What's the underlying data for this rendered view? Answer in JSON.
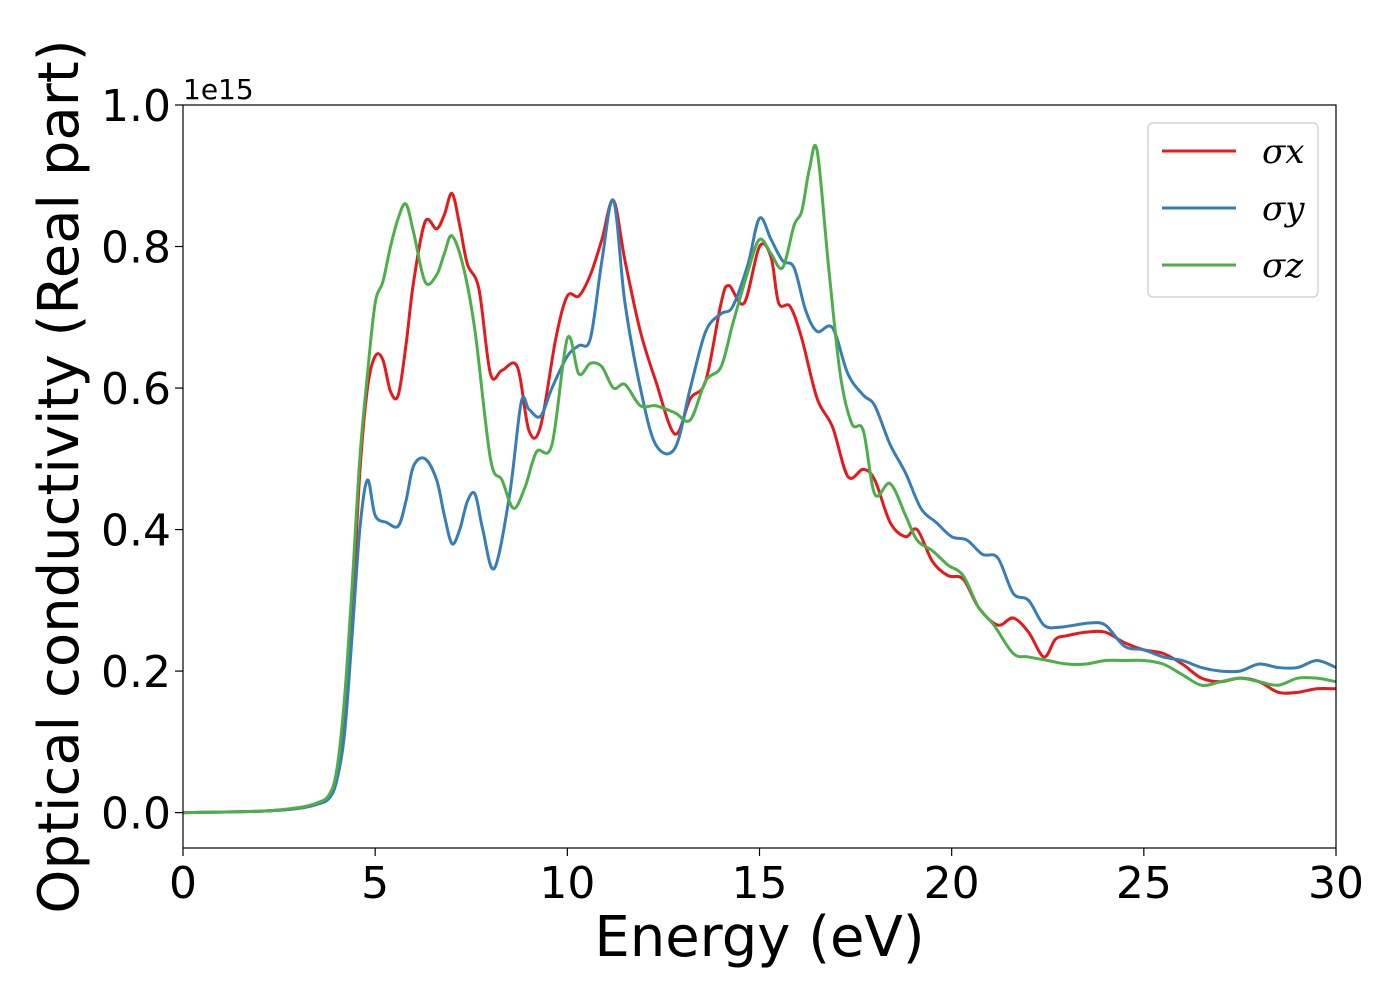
{
  "chart_data": {
    "type": "line",
    "xlabel": "Energy (eV)",
    "ylabel": "Optical conductivity (Real part)",
    "y_offset_text": "1e15",
    "xlim": [
      0,
      30
    ],
    "ylim": [
      -0.05,
      1.0
    ],
    "x_ticks": [
      0,
      5,
      10,
      15,
      20,
      25,
      30
    ],
    "x_tick_labels": [
      "0",
      "5",
      "10",
      "15",
      "20",
      "25",
      "30"
    ],
    "y_ticks": [
      0.0,
      0.2,
      0.4,
      0.6,
      0.8,
      1.0
    ],
    "y_tick_labels": [
      "0.0",
      "0.2",
      "0.4",
      "0.6",
      "0.8",
      "1.0"
    ],
    "grid": false,
    "legend_position": "top-right",
    "series": [
      {
        "name": "σx",
        "color": "#e41a1c",
        "x": [
          0,
          2,
          3,
          3.5,
          3.8,
          4.0,
          4.2,
          4.4,
          4.6,
          4.8,
          5.0,
          5.2,
          5.4,
          5.6,
          5.8,
          6.0,
          6.3,
          6.6,
          6.8,
          7.0,
          7.2,
          7.4,
          7.7,
          8.0,
          8.3,
          8.7,
          9.0,
          9.3,
          9.7,
          10.0,
          10.3,
          10.6,
          10.9,
          11.2,
          11.5,
          11.9,
          12.3,
          12.8,
          13.2,
          13.6,
          14.0,
          14.2,
          14.6,
          15.0,
          15.3,
          15.5,
          15.8,
          16.1,
          16.5,
          16.9,
          17.3,
          17.7,
          18.0,
          18.4,
          18.8,
          19.1,
          19.5,
          19.9,
          20.3,
          20.7,
          21.2,
          21.6,
          22.0,
          22.4,
          22.7,
          23.0,
          23.5,
          24.0,
          24.5,
          25.0,
          25.5,
          26.0,
          26.5,
          27.0,
          27.5,
          28.0,
          28.5,
          29.0,
          29.5,
          30.0
        ],
        "values": [
          0.0,
          0.002,
          0.006,
          0.012,
          0.022,
          0.05,
          0.13,
          0.28,
          0.48,
          0.6,
          0.645,
          0.64,
          0.595,
          0.59,
          0.66,
          0.75,
          0.835,
          0.825,
          0.845,
          0.875,
          0.83,
          0.775,
          0.74,
          0.62,
          0.625,
          0.63,
          0.54,
          0.545,
          0.67,
          0.73,
          0.73,
          0.76,
          0.81,
          0.865,
          0.78,
          0.68,
          0.61,
          0.535,
          0.585,
          0.61,
          0.72,
          0.745,
          0.72,
          0.8,
          0.785,
          0.72,
          0.715,
          0.67,
          0.585,
          0.545,
          0.475,
          0.485,
          0.47,
          0.41,
          0.39,
          0.4,
          0.355,
          0.335,
          0.33,
          0.29,
          0.265,
          0.275,
          0.255,
          0.22,
          0.245,
          0.25,
          0.255,
          0.255,
          0.24,
          0.23,
          0.225,
          0.21,
          0.19,
          0.185,
          0.19,
          0.185,
          0.17,
          0.17,
          0.175,
          0.175
        ]
      },
      {
        "name": "σy",
        "color": "#377eb8",
        "x": [
          0,
          2,
          3,
          3.5,
          3.8,
          4.0,
          4.2,
          4.4,
          4.6,
          4.8,
          5.0,
          5.3,
          5.6,
          5.8,
          6.0,
          6.3,
          6.6,
          6.8,
          7.0,
          7.2,
          7.4,
          7.6,
          7.8,
          8.1,
          8.5,
          8.8,
          9.0,
          9.3,
          9.6,
          10.0,
          10.3,
          10.6,
          10.9,
          11.2,
          11.5,
          11.9,
          12.3,
          12.8,
          13.2,
          13.6,
          14.0,
          14.3,
          14.7,
          15.0,
          15.3,
          15.6,
          15.9,
          16.2,
          16.5,
          16.9,
          17.3,
          17.7,
          18.0,
          18.4,
          18.8,
          19.2,
          19.6,
          20.0,
          20.4,
          20.8,
          21.2,
          21.6,
          22.0,
          22.4,
          22.8,
          23.2,
          23.6,
          24.0,
          24.5,
          25.0,
          25.5,
          26.0,
          26.5,
          27.0,
          27.5,
          28.0,
          28.5,
          29.0,
          29.5,
          30.0
        ],
        "values": [
          0.0,
          0.002,
          0.006,
          0.012,
          0.02,
          0.045,
          0.11,
          0.25,
          0.4,
          0.47,
          0.42,
          0.41,
          0.405,
          0.44,
          0.49,
          0.5,
          0.47,
          0.42,
          0.38,
          0.4,
          0.44,
          0.45,
          0.4,
          0.345,
          0.45,
          0.58,
          0.57,
          0.56,
          0.6,
          0.645,
          0.66,
          0.67,
          0.78,
          0.865,
          0.72,
          0.6,
          0.52,
          0.515,
          0.6,
          0.68,
          0.705,
          0.715,
          0.775,
          0.84,
          0.81,
          0.78,
          0.77,
          0.71,
          0.68,
          0.685,
          0.62,
          0.59,
          0.575,
          0.52,
          0.48,
          0.43,
          0.41,
          0.39,
          0.385,
          0.365,
          0.36,
          0.31,
          0.3,
          0.265,
          0.262,
          0.265,
          0.268,
          0.265,
          0.235,
          0.23,
          0.22,
          0.215,
          0.205,
          0.2,
          0.2,
          0.21,
          0.205,
          0.205,
          0.215,
          0.205
        ]
      },
      {
        "name": "σz",
        "color": "#4daf4a",
        "x": [
          0,
          2,
          3,
          3.5,
          3.8,
          4.0,
          4.2,
          4.4,
          4.6,
          4.8,
          5.0,
          5.2,
          5.4,
          5.6,
          5.8,
          6.0,
          6.3,
          6.6,
          6.8,
          7.0,
          7.3,
          7.6,
          8.0,
          8.3,
          8.6,
          8.9,
          9.2,
          9.6,
          10.0,
          10.3,
          10.6,
          10.9,
          11.2,
          11.5,
          11.9,
          12.3,
          12.8,
          13.2,
          13.6,
          14.0,
          14.3,
          14.7,
          15.0,
          15.3,
          15.6,
          15.9,
          16.1,
          16.3,
          16.5,
          16.8,
          17.1,
          17.4,
          17.7,
          18.0,
          18.4,
          18.8,
          19.1,
          19.5,
          19.9,
          20.3,
          20.7,
          21.1,
          21.6,
          22.0,
          22.5,
          23.0,
          23.5,
          24.0,
          24.5,
          25.0,
          25.5,
          26.0,
          26.5,
          27.0,
          27.5,
          28.0,
          28.5,
          29.0,
          29.5,
          30.0
        ],
        "values": [
          0.0,
          0.002,
          0.007,
          0.014,
          0.025,
          0.06,
          0.16,
          0.32,
          0.5,
          0.62,
          0.72,
          0.75,
          0.8,
          0.84,
          0.86,
          0.82,
          0.75,
          0.76,
          0.79,
          0.815,
          0.77,
          0.68,
          0.5,
          0.47,
          0.43,
          0.46,
          0.51,
          0.52,
          0.67,
          0.62,
          0.635,
          0.63,
          0.6,
          0.605,
          0.575,
          0.575,
          0.565,
          0.555,
          0.61,
          0.63,
          0.69,
          0.765,
          0.81,
          0.79,
          0.77,
          0.83,
          0.85,
          0.91,
          0.935,
          0.77,
          0.62,
          0.55,
          0.54,
          0.45,
          0.465,
          0.42,
          0.385,
          0.37,
          0.35,
          0.335,
          0.29,
          0.265,
          0.225,
          0.22,
          0.215,
          0.21,
          0.21,
          0.215,
          0.215,
          0.215,
          0.21,
          0.195,
          0.18,
          0.185,
          0.19,
          0.185,
          0.18,
          0.19,
          0.19,
          0.185
        ]
      }
    ]
  }
}
